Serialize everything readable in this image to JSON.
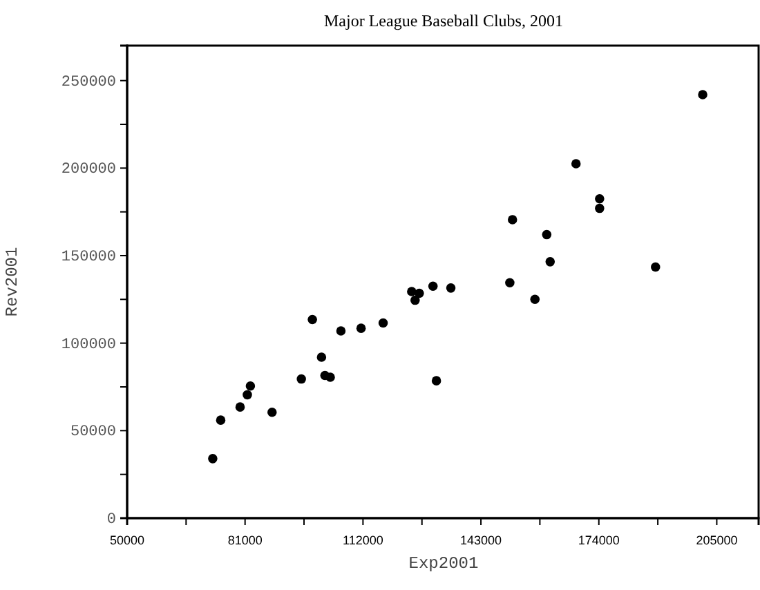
{
  "chart_data": {
    "type": "scatter",
    "title": "Major League Baseball Clubs, 2001",
    "xlabel": "Exp2001",
    "ylabel": "Rev2001",
    "xlim": [
      50000,
      216000
    ],
    "ylim": [
      0,
      270000
    ],
    "xticks": [
      50000,
      {
        "value": 65500,
        "label": null
      },
      81000,
      {
        "value": 96500,
        "label": null
      },
      112000,
      {
        "value": 127500,
        "label": null
      },
      143000,
      {
        "value": 158500,
        "label": null
      },
      174000,
      {
        "value": 189500,
        "label": null
      },
      205000
    ],
    "yticks": [
      0,
      {
        "value": 25000,
        "label": null
      },
      50000,
      {
        "value": 75000,
        "label": null
      },
      100000,
      {
        "value": 125000,
        "label": null
      },
      150000,
      {
        "value": 175000,
        "label": null
      },
      200000,
      {
        "value": 225000,
        "label": null
      },
      250000
    ],
    "marker": "circle",
    "grid": false,
    "series": [
      {
        "color": "#000000",
        "x": [
          201300,
          168000,
          174200,
          174200,
          151300,
          160300,
          161200,
          188900,
          150600,
          157200,
          135100,
          130400,
          124800,
          126800,
          125700,
          117300,
          111500,
          106200,
          98700,
          101100,
          102000,
          103400,
          95800,
          131300,
          82400,
          81600,
          79700,
          88100,
          74600,
          72500
        ],
        "values": [
          242000,
          202500,
          182500,
          177000,
          170500,
          162000,
          146500,
          143500,
          134500,
          125000,
          131500,
          132500,
          129500,
          128500,
          124500,
          111500,
          108500,
          107000,
          113500,
          92000,
          81500,
          80500,
          79500,
          78500,
          75500,
          70500,
          63500,
          60500,
          56000,
          34000
        ]
      }
    ]
  }
}
